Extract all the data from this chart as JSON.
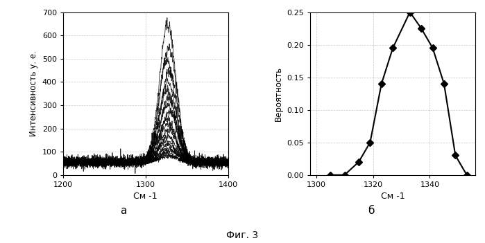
{
  "left_chart": {
    "xlabel": "См -1",
    "ylabel": "Интенсивность у. е.",
    "xlim": [
      1200,
      1400
    ],
    "ylim": [
      0,
      700
    ],
    "xticks": [
      1200,
      1300,
      1400
    ],
    "yticks": [
      0,
      100,
      200,
      300,
      400,
      500,
      600,
      700
    ],
    "label_a": "а"
  },
  "right_chart": {
    "xlabel": "См -1",
    "ylabel": "Вероятность",
    "xlim": [
      1298,
      1356
    ],
    "ylim": [
      0,
      0.25
    ],
    "xticks": [
      1300,
      1320,
      1340
    ],
    "yticks": [
      0,
      0.05,
      0.1,
      0.15,
      0.2,
      0.25
    ],
    "x_data": [
      1305,
      1310,
      1315,
      1319,
      1323,
      1327,
      1333,
      1337,
      1341,
      1345,
      1349,
      1353
    ],
    "y_data": [
      0.0,
      0.0,
      0.02,
      0.05,
      0.14,
      0.195,
      0.25,
      0.225,
      0.195,
      0.14,
      0.03,
      0.0
    ],
    "label_b": "б"
  },
  "figure_label": "Фиг. 3",
  "line_color": "#000000",
  "grid_color": "#b0b0b0",
  "background": "#ffffff",
  "curves_params": [
    [
      1327,
      590,
      55,
      15
    ],
    [
      1328,
      490,
      58,
      12
    ],
    [
      1326,
      440,
      56,
      12
    ],
    [
      1329,
      390,
      57,
      11
    ],
    [
      1327,
      350,
      55,
      10
    ],
    [
      1326,
      310,
      56,
      10
    ],
    [
      1328,
      275,
      57,
      9
    ],
    [
      1327,
      245,
      56,
      9
    ],
    [
      1329,
      215,
      57,
      8
    ],
    [
      1326,
      185,
      55,
      8
    ],
    [
      1327,
      160,
      56,
      7
    ],
    [
      1328,
      135,
      55,
      7
    ],
    [
      1327,
      110,
      56,
      6
    ],
    [
      1326,
      90,
      55,
      6
    ],
    [
      1328,
      75,
      56,
      5
    ],
    [
      1327,
      60,
      55,
      5
    ],
    [
      1329,
      50,
      56,
      5
    ],
    [
      1326,
      40,
      55,
      5
    ],
    [
      1327,
      30,
      55,
      4
    ],
    [
      1328,
      25,
      55,
      4
    ]
  ]
}
